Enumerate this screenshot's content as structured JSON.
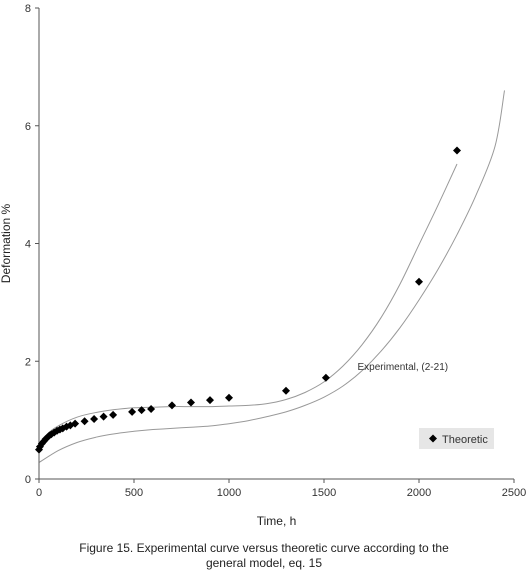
{
  "chart_data": {
    "type": "scatter",
    "xlabel": "Time, h",
    "ylabel": "Deformation %",
    "xlim": [
      0,
      2500
    ],
    "ylim": [
      0,
      8
    ],
    "xticks": [
      0,
      500,
      1000,
      1500,
      2000,
      2500
    ],
    "yticks": [
      0,
      2,
      4,
      6,
      8
    ],
    "grid": false,
    "legend_position": "bottom-right",
    "series": [
      {
        "name": "Theoretic",
        "marker": "diamond",
        "color": "#000000",
        "points": [
          [
            0,
            0.5
          ],
          [
            5,
            0.55
          ],
          [
            15,
            0.6
          ],
          [
            25,
            0.64
          ],
          [
            35,
            0.68
          ],
          [
            45,
            0.71
          ],
          [
            55,
            0.74
          ],
          [
            65,
            0.76
          ],
          [
            80,
            0.79
          ],
          [
            95,
            0.82
          ],
          [
            110,
            0.84
          ],
          [
            125,
            0.86
          ],
          [
            145,
            0.89
          ],
          [
            165,
            0.91
          ],
          [
            190,
            0.94
          ],
          [
            240,
            0.98
          ],
          [
            290,
            1.02
          ],
          [
            340,
            1.06
          ],
          [
            390,
            1.09
          ],
          [
            490,
            1.14
          ],
          [
            540,
            1.17
          ],
          [
            590,
            1.19
          ],
          [
            700,
            1.25
          ],
          [
            800,
            1.3
          ],
          [
            900,
            1.34
          ],
          [
            1000,
            1.38
          ],
          [
            1300,
            1.5
          ],
          [
            1510,
            1.72
          ],
          [
            2000,
            3.35
          ],
          [
            2200,
            5.58
          ]
        ]
      }
    ],
    "curves": [
      {
        "role": "upper",
        "color": "#999999",
        "points": [
          [
            0,
            0.48
          ],
          [
            50,
            0.77
          ],
          [
            100,
            0.9
          ],
          [
            200,
            1.05
          ],
          [
            300,
            1.13
          ],
          [
            400,
            1.18
          ],
          [
            500,
            1.21
          ],
          [
            600,
            1.22
          ],
          [
            700,
            1.23
          ],
          [
            800,
            1.23
          ],
          [
            900,
            1.23
          ],
          [
            1000,
            1.24
          ],
          [
            1100,
            1.25
          ],
          [
            1200,
            1.28
          ],
          [
            1300,
            1.35
          ],
          [
            1400,
            1.47
          ],
          [
            1500,
            1.65
          ],
          [
            1600,
            1.92
          ],
          [
            1700,
            2.28
          ],
          [
            1800,
            2.74
          ],
          [
            1900,
            3.31
          ],
          [
            2000,
            3.98
          ],
          [
            2100,
            4.65
          ],
          [
            2200,
            5.35
          ]
        ]
      },
      {
        "role": "lower",
        "color": "#999999",
        "points": [
          [
            0,
            0.28
          ],
          [
            100,
            0.48
          ],
          [
            200,
            0.62
          ],
          [
            300,
            0.71
          ],
          [
            400,
            0.77
          ],
          [
            500,
            0.81
          ],
          [
            600,
            0.84
          ],
          [
            700,
            0.86
          ],
          [
            800,
            0.88
          ],
          [
            900,
            0.9
          ],
          [
            1000,
            0.94
          ],
          [
            1100,
            0.99
          ],
          [
            1200,
            1.06
          ],
          [
            1300,
            1.14
          ],
          [
            1400,
            1.25
          ],
          [
            1500,
            1.39
          ],
          [
            1600,
            1.58
          ],
          [
            1700,
            1.84
          ],
          [
            1800,
            2.17
          ],
          [
            1900,
            2.57
          ],
          [
            2000,
            3.04
          ],
          [
            2100,
            3.56
          ],
          [
            2200,
            4.15
          ],
          [
            2300,
            4.82
          ],
          [
            2400,
            5.65
          ],
          [
            2450,
            6.6
          ]
        ]
      }
    ],
    "annotation": {
      "text": "Experimental, (2-21)",
      "x": 2020,
      "y": 1.85
    }
  },
  "caption": {
    "line1": "Figure 15.  Experimental curve versus theoretic curve according to the",
    "line2": "general model, eq. 15"
  }
}
